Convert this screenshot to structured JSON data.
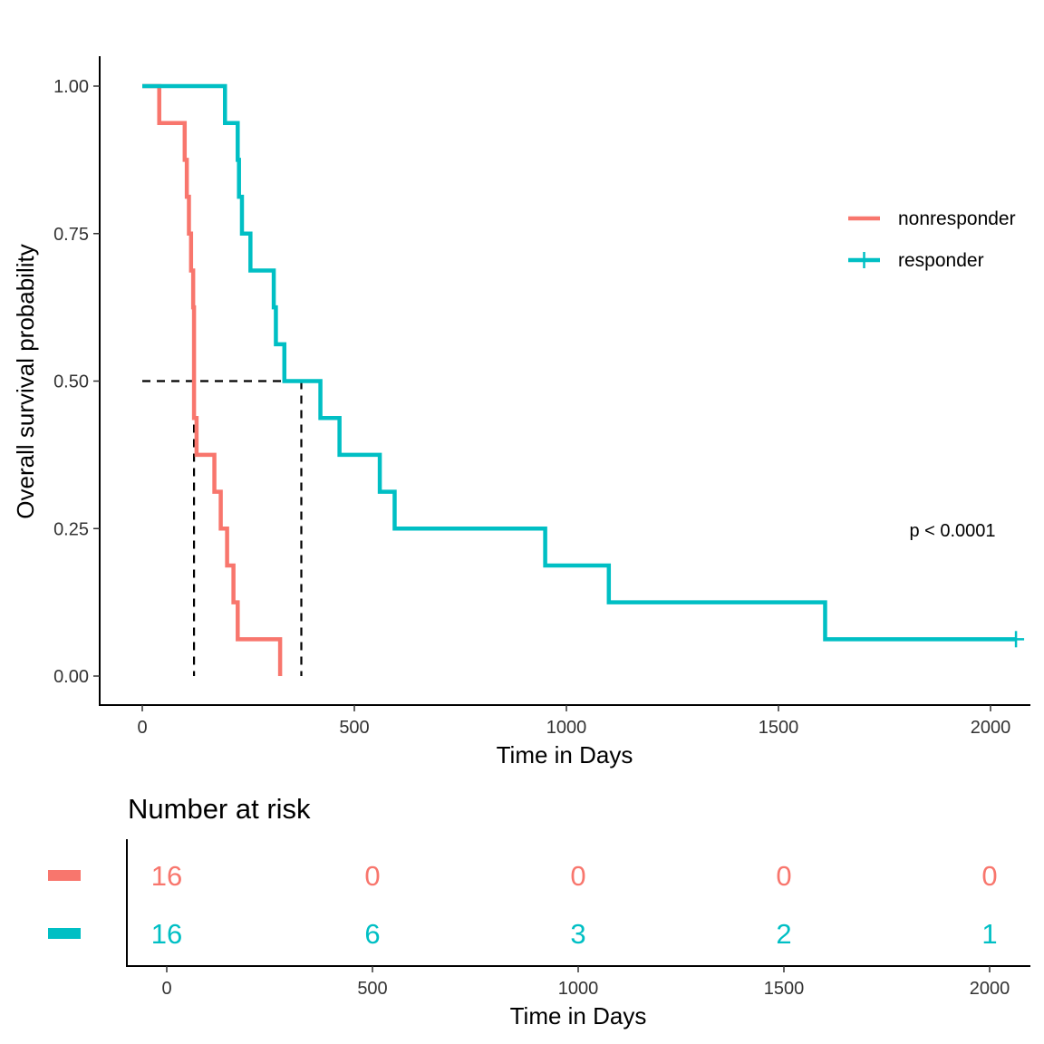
{
  "chart_data": [
    {
      "type": "line",
      "subtype": "kaplan-meier",
      "xlabel": "Time in Days",
      "ylabel": "Overall survival probability",
      "xlim": [
        -100,
        2100
      ],
      "ylim": [
        -0.05,
        1.05
      ],
      "x_ticks": [
        0,
        500,
        1000,
        1500,
        2000
      ],
      "x_tick_labels": [
        "0",
        "500",
        "1000",
        "1500",
        "2000"
      ],
      "y_ticks": [
        0,
        0.25,
        0.5,
        0.75,
        1.0
      ],
      "y_tick_labels": [
        "0.00",
        "0.25",
        "0.50",
        "0.75",
        "1.00"
      ],
      "grid": false,
      "legend_position": "right",
      "annotation": "p < 0.0001",
      "median_survival": [
        {
          "series": "nonresponder",
          "x": 122,
          "y": 0.5
        },
        {
          "series": "responder",
          "x": 375,
          "y": 0.5
        }
      ],
      "series": [
        {
          "name": "nonresponder",
          "color": "#F8766D",
          "x": [
            0,
            40,
            100,
            105,
            110,
            115,
            120,
            122,
            128,
            170,
            185,
            200,
            215,
            225,
            325
          ],
          "y": [
            1.0,
            0.9375,
            0.875,
            0.8125,
            0.75,
            0.6875,
            0.625,
            0.4375,
            0.375,
            0.3125,
            0.25,
            0.1875,
            0.125,
            0.0625,
            0.0
          ],
          "censored": []
        },
        {
          "name": "responder",
          "color": "#00BFC4",
          "x": [
            0,
            195,
            225,
            228,
            235,
            255,
            310,
            315,
            335,
            420,
            465,
            560,
            595,
            950,
            1100,
            1610,
            2060
          ],
          "y": [
            1.0,
            0.9375,
            0.875,
            0.8125,
            0.75,
            0.6875,
            0.625,
            0.5625,
            0.5,
            0.4375,
            0.375,
            0.3125,
            0.25,
            0.1875,
            0.125,
            0.0625,
            0.0625
          ],
          "censored": [
            {
              "x": 2060,
              "y": 0.0625
            }
          ]
        }
      ]
    },
    {
      "type": "table",
      "title": "Number at risk",
      "xlabel": "Time in Days",
      "x_ticks": [
        0,
        500,
        1000,
        1500,
        2000
      ],
      "x_tick_labels": [
        "0",
        "500",
        "1000",
        "1500",
        "2000"
      ],
      "rows": [
        {
          "name": "nonresponder",
          "color": "#F8766D",
          "values": [
            "16",
            "0",
            "0",
            "0",
            "0"
          ]
        },
        {
          "name": "responder",
          "color": "#00BFC4",
          "values": [
            "16",
            "6",
            "3",
            "2",
            "1"
          ]
        }
      ]
    }
  ]
}
